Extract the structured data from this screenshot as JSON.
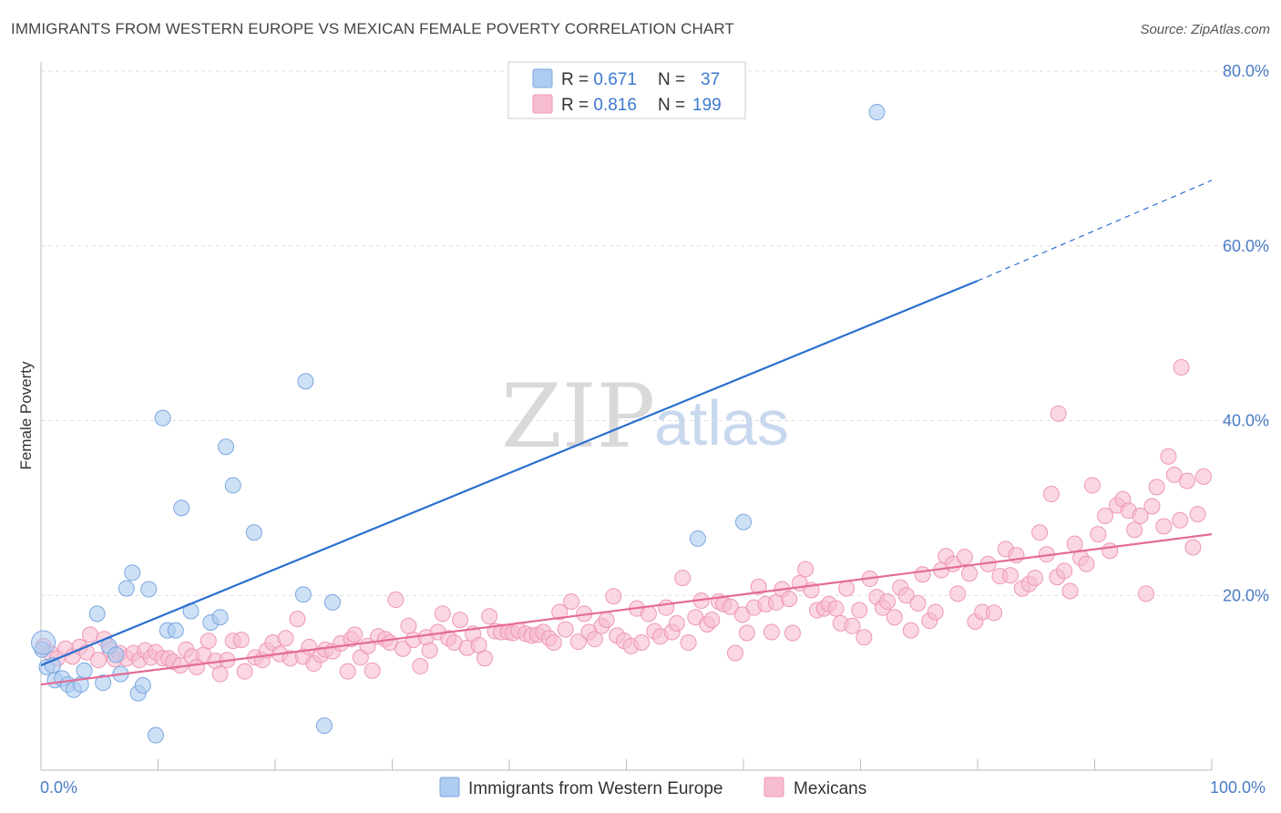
{
  "title": "IMMIGRANTS FROM WESTERN EUROPE VS MEXICAN FEMALE POVERTY CORRELATION CHART",
  "source": "Source: ZipAtlas.com",
  "watermark": {
    "zip": "ZIP",
    "atlas": "atlas"
  },
  "legend": {
    "rows": [
      {
        "r_label": "R = ",
        "r_value": "0.671",
        "n_label": "N = ",
        "n_value": "37"
      },
      {
        "r_label": "R = ",
        "r_value": "0.816",
        "n_label": "N = ",
        "n_value": "199"
      }
    ]
  },
  "bottom_legend": [
    "Immigrants from Western Europe",
    "Mexicans"
  ],
  "colors": {
    "blue_fill": "#aecbf0",
    "blue_stroke": "#7aa8e0",
    "blue_line": "#2a6fcf",
    "pink_fill": "#f6bcd0",
    "pink_stroke": "#ee97b5",
    "pink_line": "#e46b97",
    "grid": "#dddddd",
    "tick_text": "#4a7cc7"
  },
  "chart_data": {
    "type": "scatter",
    "title": "IMMIGRANTS FROM WESTERN EUROPE VS MEXICAN FEMALE POVERTY CORRELATION CHART",
    "xlabel": "",
    "ylabel": "Female Poverty",
    "xlim": [
      0,
      100
    ],
    "ylim": [
      0,
      80
    ],
    "x_tick_labels": [
      "0.0%",
      "100.0%"
    ],
    "y_ticks": [
      20,
      40,
      60,
      80
    ],
    "y_tick_labels": [
      "20.0%",
      "40.0%",
      "60.0%",
      "80.0%"
    ],
    "grid": true,
    "legend_position": "top-center",
    "series": [
      {
        "name": "Immigrants from Western Europe",
        "r": 0.671,
        "n": 37,
        "trend": {
          "x0": 0,
          "y0": 12.0,
          "x1": 80,
          "y1": 56.0,
          "dashed_to_x": 100,
          "dashed_to_y": 67.5
        },
        "points": [
          [
            0.1,
            13.8
          ],
          [
            0.5,
            11.8
          ],
          [
            1.2,
            10.3
          ],
          [
            1.8,
            10.5
          ],
          [
            2.3,
            9.8
          ],
          [
            2.8,
            9.2
          ],
          [
            3.4,
            9.8
          ],
          [
            3.7,
            11.4
          ],
          [
            4.8,
            17.9
          ],
          [
            5.3,
            10.0
          ],
          [
            5.8,
            14.2
          ],
          [
            6.4,
            13.2
          ],
          [
            6.8,
            11.0
          ],
          [
            7.3,
            20.8
          ],
          [
            7.8,
            22.6
          ],
          [
            8.3,
            8.8
          ],
          [
            8.7,
            9.7
          ],
          [
            9.2,
            20.7
          ],
          [
            9.8,
            4.0
          ],
          [
            10.4,
            40.3
          ],
          [
            10.8,
            16.0
          ],
          [
            11.5,
            16.0
          ],
          [
            12.0,
            30.0
          ],
          [
            12.8,
            18.2
          ],
          [
            14.5,
            16.9
          ],
          [
            15.3,
            17.5
          ],
          [
            15.8,
            37.0
          ],
          [
            16.4,
            32.6
          ],
          [
            18.2,
            27.2
          ],
          [
            22.4,
            20.1
          ],
          [
            22.6,
            44.5
          ],
          [
            24.2,
            5.1
          ],
          [
            24.9,
            19.2
          ],
          [
            56.1,
            26.5
          ],
          [
            60.0,
            28.4
          ],
          [
            71.4,
            75.3
          ],
          [
            1.0,
            12.0
          ]
        ]
      },
      {
        "name": "Mexicans",
        "r": 0.816,
        "n": 199,
        "trend": {
          "x0": 0,
          "y0": 9.8,
          "x1": 100,
          "y1": 27.0
        },
        "points": [
          [
            0.2,
            14.2
          ],
          [
            0.8,
            13.4
          ],
          [
            1.4,
            12.8
          ],
          [
            2.1,
            13.9
          ],
          [
            2.7,
            13.0
          ],
          [
            3.3,
            14.1
          ],
          [
            3.9,
            13.5
          ],
          [
            4.2,
            15.5
          ],
          [
            4.9,
            12.6
          ],
          [
            5.4,
            15.0
          ],
          [
            5.9,
            13.8
          ],
          [
            6.3,
            12.7
          ],
          [
            6.7,
            13.4
          ],
          [
            7.3,
            12.8
          ],
          [
            7.9,
            13.4
          ],
          [
            8.4,
            12.6
          ],
          [
            8.9,
            13.7
          ],
          [
            9.4,
            12.9
          ],
          [
            9.8,
            13.5
          ],
          [
            10.4,
            12.8
          ],
          [
            10.9,
            12.8
          ],
          [
            11.3,
            12.4
          ],
          [
            11.9,
            12.0
          ],
          [
            12.4,
            13.8
          ],
          [
            12.9,
            13.0
          ],
          [
            13.3,
            11.8
          ],
          [
            13.9,
            13.2
          ],
          [
            14.3,
            14.8
          ],
          [
            14.9,
            12.5
          ],
          [
            15.3,
            11.0
          ],
          [
            15.9,
            12.6
          ],
          [
            16.4,
            14.8
          ],
          [
            17.1,
            14.9
          ],
          [
            17.4,
            11.3
          ],
          [
            18.3,
            12.9
          ],
          [
            18.9,
            12.6
          ],
          [
            19.3,
            13.7
          ],
          [
            19.8,
            14.6
          ],
          [
            20.4,
            13.3
          ],
          [
            20.9,
            15.1
          ],
          [
            21.3,
            12.8
          ],
          [
            21.9,
            17.3
          ],
          [
            22.4,
            13.0
          ],
          [
            22.9,
            14.1
          ],
          [
            23.3,
            12.2
          ],
          [
            23.9,
            13.2
          ],
          [
            24.3,
            13.8
          ],
          [
            24.9,
            13.6
          ],
          [
            25.6,
            14.5
          ],
          [
            26.2,
            11.3
          ],
          [
            26.5,
            15.0
          ],
          [
            26.8,
            15.5
          ],
          [
            27.3,
            12.9
          ],
          [
            27.9,
            14.2
          ],
          [
            28.3,
            11.4
          ],
          [
            28.8,
            15.3
          ],
          [
            29.4,
            15.0
          ],
          [
            29.8,
            14.6
          ],
          [
            30.3,
            19.5
          ],
          [
            30.9,
            13.9
          ],
          [
            31.4,
            16.5
          ],
          [
            31.8,
            14.9
          ],
          [
            32.4,
            11.9
          ],
          [
            32.9,
            15.2
          ],
          [
            33.2,
            13.7
          ],
          [
            33.9,
            15.8
          ],
          [
            34.3,
            17.9
          ],
          [
            34.8,
            15.1
          ],
          [
            35.3,
            14.6
          ],
          [
            35.8,
            17.2
          ],
          [
            36.4,
            14.0
          ],
          [
            36.9,
            15.6
          ],
          [
            37.4,
            14.3
          ],
          [
            37.9,
            12.8
          ],
          [
            38.3,
            17.6
          ],
          [
            38.8,
            15.9
          ],
          [
            39.3,
            15.8
          ],
          [
            39.9,
            15.8
          ],
          [
            40.3,
            15.7
          ],
          [
            40.8,
            16.0
          ],
          [
            41.4,
            15.6
          ],
          [
            41.9,
            15.4
          ],
          [
            42.4,
            15.5
          ],
          [
            42.9,
            15.8
          ],
          [
            43.4,
            15.1
          ],
          [
            43.8,
            14.6
          ],
          [
            44.3,
            18.1
          ],
          [
            44.8,
            16.1
          ],
          [
            45.3,
            19.3
          ],
          [
            45.9,
            14.7
          ],
          [
            46.4,
            17.9
          ],
          [
            46.8,
            15.8
          ],
          [
            47.3,
            15.0
          ],
          [
            47.9,
            16.5
          ],
          [
            48.3,
            17.2
          ],
          [
            48.9,
            19.9
          ],
          [
            49.2,
            15.4
          ],
          [
            49.8,
            14.8
          ],
          [
            50.4,
            14.2
          ],
          [
            50.9,
            18.5
          ],
          [
            51.3,
            14.6
          ],
          [
            51.9,
            17.9
          ],
          [
            52.4,
            15.9
          ],
          [
            52.9,
            15.3
          ],
          [
            53.4,
            18.6
          ],
          [
            53.9,
            15.8
          ],
          [
            54.3,
            16.8
          ],
          [
            54.8,
            22.0
          ],
          [
            55.3,
            14.6
          ],
          [
            55.9,
            17.5
          ],
          [
            56.4,
            19.4
          ],
          [
            56.9,
            16.7
          ],
          [
            57.3,
            17.2
          ],
          [
            57.9,
            19.3
          ],
          [
            58.3,
            19.0
          ],
          [
            58.9,
            18.7
          ],
          [
            59.3,
            13.4
          ],
          [
            59.9,
            17.8
          ],
          [
            60.3,
            15.7
          ],
          [
            60.9,
            18.6
          ],
          [
            61.3,
            21.0
          ],
          [
            61.9,
            19.0
          ],
          [
            62.4,
            15.8
          ],
          [
            62.8,
            19.2
          ],
          [
            63.3,
            20.7
          ],
          [
            63.9,
            19.6
          ],
          [
            64.2,
            15.7
          ],
          [
            64.8,
            21.4
          ],
          [
            65.3,
            23.0
          ],
          [
            65.8,
            20.6
          ],
          [
            66.3,
            18.3
          ],
          [
            66.9,
            18.5
          ],
          [
            67.3,
            19.0
          ],
          [
            67.9,
            18.5
          ],
          [
            68.3,
            16.8
          ],
          [
            68.8,
            20.8
          ],
          [
            69.3,
            16.5
          ],
          [
            69.9,
            18.3
          ],
          [
            70.3,
            15.2
          ],
          [
            70.8,
            21.9
          ],
          [
            71.4,
            19.8
          ],
          [
            71.9,
            18.6
          ],
          [
            72.3,
            19.3
          ],
          [
            72.9,
            17.5
          ],
          [
            73.4,
            20.9
          ],
          [
            73.9,
            20.0
          ],
          [
            74.3,
            16.0
          ],
          [
            74.9,
            19.1
          ],
          [
            75.3,
            22.4
          ],
          [
            75.9,
            17.1
          ],
          [
            76.4,
            18.1
          ],
          [
            76.9,
            22.9
          ],
          [
            77.3,
            24.5
          ],
          [
            77.9,
            23.6
          ],
          [
            78.3,
            20.2
          ],
          [
            78.9,
            24.4
          ],
          [
            79.3,
            22.5
          ],
          [
            79.8,
            17.0
          ],
          [
            80.4,
            18.1
          ],
          [
            80.9,
            23.6
          ],
          [
            81.4,
            18.0
          ],
          [
            81.9,
            22.2
          ],
          [
            82.4,
            25.3
          ],
          [
            82.8,
            22.3
          ],
          [
            83.3,
            24.6
          ],
          [
            83.8,
            20.8
          ],
          [
            84.4,
            21.3
          ],
          [
            84.9,
            22.0
          ],
          [
            85.3,
            27.2
          ],
          [
            85.9,
            24.7
          ],
          [
            86.3,
            31.6
          ],
          [
            86.8,
            22.1
          ],
          [
            87.4,
            22.8
          ],
          [
            87.9,
            20.5
          ],
          [
            88.3,
            25.9
          ],
          [
            88.8,
            24.3
          ],
          [
            89.3,
            23.6
          ],
          [
            89.8,
            32.6
          ],
          [
            90.3,
            27.0
          ],
          [
            90.9,
            29.1
          ],
          [
            91.3,
            25.1
          ],
          [
            91.9,
            30.3
          ],
          [
            92.4,
            31.0
          ],
          [
            92.9,
            29.7
          ],
          [
            93.4,
            27.5
          ],
          [
            93.9,
            29.1
          ],
          [
            94.4,
            20.2
          ],
          [
            94.9,
            30.2
          ],
          [
            95.3,
            32.4
          ],
          [
            95.9,
            27.9
          ],
          [
            96.3,
            35.9
          ],
          [
            96.8,
            33.8
          ],
          [
            97.3,
            28.6
          ],
          [
            97.9,
            33.1
          ],
          [
            98.4,
            25.5
          ],
          [
            98.8,
            29.3
          ],
          [
            99.3,
            33.6
          ],
          [
            86.9,
            40.8
          ],
          [
            97.4,
            46.1
          ]
        ]
      }
    ]
  }
}
